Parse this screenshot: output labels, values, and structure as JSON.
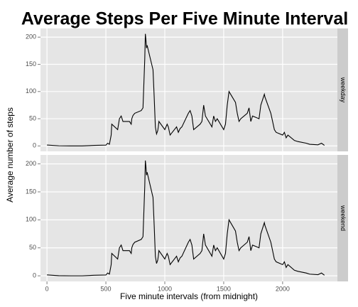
{
  "chart_data": {
    "type": "line",
    "title": "Average Steps Per Five Minute Interval",
    "x_label": "Five minute intervals (from midnight)",
    "y_label": "Average number of steps",
    "xlim": [
      -55,
      2465
    ],
    "xticks": [
      0,
      500,
      1000,
      1500,
      2000
    ],
    "ylim": [
      -10,
      216
    ],
    "yticks": [
      0,
      50,
      100,
      150,
      200
    ],
    "grid": true,
    "series": [
      {
        "name": "weekday",
        "color": "#000000",
        "x": [
          0,
          100,
          200,
          300,
          400,
          500,
          515,
          530,
          545,
          550,
          600,
          615,
          630,
          645,
          700,
          715,
          720,
          730,
          745,
          800,
          815,
          830,
          835,
          840,
          845,
          850,
          900,
          910,
          920,
          930,
          940,
          945,
          950,
          1000,
          1020,
          1030,
          1045,
          1100,
          1115,
          1130,
          1145,
          1200,
          1215,
          1230,
          1245,
          1300,
          1315,
          1330,
          1345,
          1400,
          1415,
          1430,
          1445,
          1500,
          1515,
          1530,
          1545,
          1600,
          1615,
          1630,
          1645,
          1700,
          1715,
          1730,
          1745,
          1800,
          1815,
          1830,
          1845,
          1850,
          1900,
          1915,
          1930,
          1945,
          2000,
          2015,
          2030,
          2045,
          2100,
          2130,
          2200,
          2230,
          2300,
          2330,
          2355
        ],
        "values": [
          1.7,
          0.3,
          0,
          0,
          1,
          1.5,
          5,
          3,
          20,
          40,
          30,
          50,
          55,
          45,
          45,
          40,
          50,
          56,
          60,
          65,
          70,
          160,
          206,
          195,
          180,
          185,
          140,
          90,
          35,
          22,
          28,
          35,
          45,
          30,
          40,
          35,
          20,
          35,
          25,
          32,
          35,
          60,
          65,
          55,
          30,
          40,
          45,
          75,
          55,
          35,
          55,
          45,
          50,
          30,
          40,
          75,
          100,
          80,
          60,
          45,
          50,
          60,
          70,
          45,
          55,
          50,
          75,
          85,
          95,
          90,
          60,
          45,
          30,
          25,
          20,
          25,
          15,
          20,
          10,
          8,
          5,
          3,
          2,
          5,
          1
        ]
      },
      {
        "name": "weekend",
        "color": "#000000",
        "x": [
          0,
          100,
          200,
          300,
          400,
          500,
          515,
          530,
          545,
          550,
          600,
          615,
          630,
          645,
          700,
          715,
          720,
          730,
          745,
          800,
          815,
          830,
          835,
          840,
          845,
          850,
          900,
          910,
          920,
          930,
          940,
          945,
          950,
          1000,
          1020,
          1030,
          1045,
          1100,
          1115,
          1130,
          1145,
          1200,
          1215,
          1230,
          1245,
          1300,
          1315,
          1330,
          1345,
          1400,
          1415,
          1430,
          1445,
          1500,
          1515,
          1530,
          1545,
          1600,
          1615,
          1630,
          1645,
          1700,
          1715,
          1730,
          1745,
          1800,
          1815,
          1830,
          1845,
          1850,
          1900,
          1915,
          1930,
          1945,
          2000,
          2015,
          2030,
          2045,
          2100,
          2130,
          2200,
          2230,
          2300,
          2330,
          2355
        ],
        "values": [
          1.7,
          0.3,
          0,
          0,
          1,
          1.5,
          5,
          3,
          20,
          40,
          30,
          50,
          55,
          45,
          45,
          40,
          50,
          56,
          60,
          65,
          70,
          160,
          206,
          195,
          180,
          185,
          140,
          90,
          35,
          22,
          28,
          35,
          45,
          30,
          40,
          35,
          20,
          35,
          25,
          32,
          35,
          60,
          65,
          55,
          30,
          40,
          45,
          75,
          55,
          35,
          55,
          45,
          50,
          30,
          40,
          75,
          100,
          80,
          60,
          45,
          50,
          60,
          70,
          45,
          55,
          50,
          75,
          85,
          95,
          90,
          60,
          45,
          30,
          25,
          20,
          25,
          15,
          20,
          10,
          8,
          5,
          3,
          2,
          5,
          1
        ]
      }
    ]
  }
}
